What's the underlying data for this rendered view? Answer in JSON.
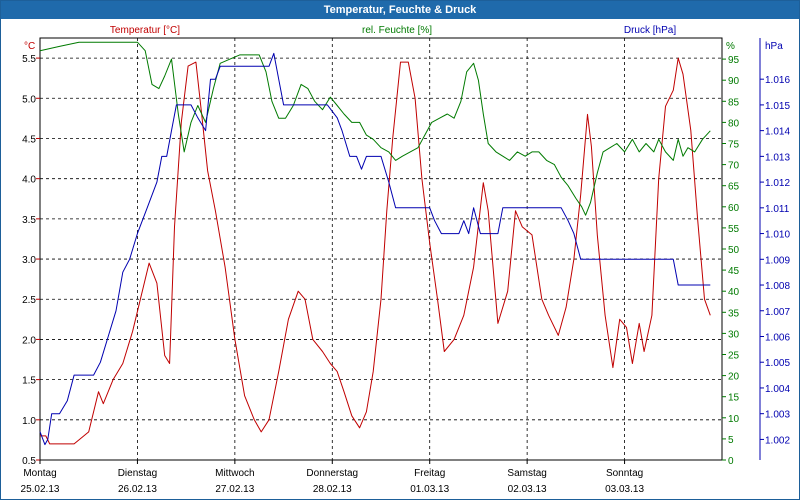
{
  "window": {
    "title": "Temperatur, Feuchte & Druck"
  },
  "colors": {
    "temperature": "#c00000",
    "humidity": "#007a00",
    "pressure": "#0000b0",
    "grid": "#000000",
    "titlebar": "#1f6aab"
  },
  "chart_data": {
    "type": "line",
    "title": "Temperatur, Feuchte & Druck",
    "x_axis": {
      "ticks": [
        {
          "day": "Montag",
          "date": "25.02.13"
        },
        {
          "day": "Dienstag",
          "date": "26.02.13"
        },
        {
          "day": "Mittwoch",
          "date": "27.02.13"
        },
        {
          "day": "Donnerstag",
          "date": "28.02.13"
        },
        {
          "day": "Freitag",
          "date": "01.03.13"
        },
        {
          "day": "Samstag",
          "date": "02.03.13"
        },
        {
          "day": "Sonntag",
          "date": "03.03.13"
        }
      ],
      "range_days": [
        0,
        7
      ]
    },
    "axes": {
      "temperature": {
        "unit_label": "°C",
        "legend": "Temperatur [°C]",
        "ylim": [
          0.5,
          5.75
        ],
        "ticks": [
          "0.5",
          "1.0",
          "1.5",
          "2.0",
          "2.5",
          "3.0",
          "3.5",
          "4.0",
          "4.5",
          "5.0",
          "5.5"
        ]
      },
      "humidity": {
        "unit_label": "%",
        "legend": "rel. Feuchte [%]",
        "ylim": [
          0,
          100
        ],
        "ticks": [
          "0",
          "5",
          "10",
          "15",
          "20",
          "25",
          "30",
          "35",
          "40",
          "45",
          "50",
          "55",
          "60",
          "65",
          "70",
          "75",
          "80",
          "85",
          "90",
          "95"
        ]
      },
      "pressure": {
        "unit_label": "hPa",
        "legend": "Druck [hPa]",
        "ylim": [
          1.0012,
          1.0176
        ],
        "ticks": [
          "1.002",
          "1.003",
          "1.004",
          "1.005",
          "1.006",
          "1.007",
          "1.008",
          "1.009",
          "1.010",
          "1.011",
          "1.012",
          "1.013",
          "1.014",
          "1.015",
          "1.016"
        ]
      }
    },
    "series": [
      {
        "name": "Temperatur [°C]",
        "axis": "temperature",
        "color": "#c00000",
        "points": [
          [
            0.0,
            0.8
          ],
          [
            0.06,
            0.8
          ],
          [
            0.1,
            0.7
          ],
          [
            0.2,
            0.7
          ],
          [
            0.35,
            0.7
          ],
          [
            0.5,
            0.85
          ],
          [
            0.6,
            1.35
          ],
          [
            0.65,
            1.2
          ],
          [
            0.75,
            1.5
          ],
          [
            0.85,
            1.7
          ],
          [
            0.95,
            2.1
          ],
          [
            1.05,
            2.6
          ],
          [
            1.12,
            2.95
          ],
          [
            1.2,
            2.7
          ],
          [
            1.28,
            1.8
          ],
          [
            1.33,
            1.7
          ],
          [
            1.38,
            3.4
          ],
          [
            1.45,
            4.7
          ],
          [
            1.52,
            5.4
          ],
          [
            1.6,
            5.45
          ],
          [
            1.66,
            4.8
          ],
          [
            1.72,
            4.1
          ],
          [
            1.8,
            3.6
          ],
          [
            1.9,
            2.9
          ],
          [
            2.0,
            2.0
          ],
          [
            2.1,
            1.3
          ],
          [
            2.2,
            1.0
          ],
          [
            2.27,
            0.85
          ],
          [
            2.35,
            1.0
          ],
          [
            2.45,
            1.6
          ],
          [
            2.55,
            2.25
          ],
          [
            2.65,
            2.6
          ],
          [
            2.72,
            2.5
          ],
          [
            2.8,
            2.0
          ],
          [
            2.9,
            1.85
          ],
          [
            2.98,
            1.7
          ],
          [
            3.05,
            1.6
          ],
          [
            3.12,
            1.35
          ],
          [
            3.2,
            1.05
          ],
          [
            3.28,
            0.9
          ],
          [
            3.35,
            1.1
          ],
          [
            3.42,
            1.6
          ],
          [
            3.5,
            2.5
          ],
          [
            3.56,
            3.6
          ],
          [
            3.62,
            4.5
          ],
          [
            3.7,
            5.45
          ],
          [
            3.78,
            5.45
          ],
          [
            3.85,
            5.0
          ],
          [
            3.92,
            4.0
          ],
          [
            4.0,
            3.2
          ],
          [
            4.08,
            2.5
          ],
          [
            4.15,
            1.85
          ],
          [
            4.25,
            2.0
          ],
          [
            4.35,
            2.3
          ],
          [
            4.45,
            2.9
          ],
          [
            4.55,
            3.95
          ],
          [
            4.6,
            3.6
          ],
          [
            4.7,
            2.2
          ],
          [
            4.8,
            2.6
          ],
          [
            4.88,
            3.6
          ],
          [
            4.95,
            3.4
          ],
          [
            5.05,
            3.3
          ],
          [
            5.15,
            2.5
          ],
          [
            5.22,
            2.3
          ],
          [
            5.32,
            2.05
          ],
          [
            5.4,
            2.4
          ],
          [
            5.48,
            3.0
          ],
          [
            5.55,
            3.8
          ],
          [
            5.62,
            4.8
          ],
          [
            5.66,
            4.4
          ],
          [
            5.72,
            3.3
          ],
          [
            5.8,
            2.3
          ],
          [
            5.88,
            1.65
          ],
          [
            5.95,
            2.25
          ],
          [
            6.02,
            2.15
          ],
          [
            6.08,
            1.7
          ],
          [
            6.15,
            2.2
          ],
          [
            6.2,
            1.85
          ],
          [
            6.28,
            2.3
          ],
          [
            6.35,
            4.0
          ],
          [
            6.42,
            4.9
          ],
          [
            6.5,
            5.1
          ],
          [
            6.55,
            5.5
          ],
          [
            6.6,
            5.3
          ],
          [
            6.68,
            4.6
          ],
          [
            6.75,
            3.5
          ],
          [
            6.82,
            2.5
          ],
          [
            6.88,
            2.3
          ]
        ]
      },
      {
        "name": "rel. Feuchte [%]",
        "axis": "humidity",
        "color": "#007a00",
        "points": [
          [
            0.0,
            97
          ],
          [
            0.2,
            98
          ],
          [
            0.4,
            99
          ],
          [
            0.6,
            99
          ],
          [
            0.8,
            99
          ],
          [
            1.0,
            99
          ],
          [
            1.08,
            97
          ],
          [
            1.15,
            89
          ],
          [
            1.22,
            88
          ],
          [
            1.28,
            91
          ],
          [
            1.35,
            95
          ],
          [
            1.42,
            82
          ],
          [
            1.48,
            73
          ],
          [
            1.55,
            80
          ],
          [
            1.62,
            84
          ],
          [
            1.7,
            80
          ],
          [
            1.78,
            88
          ],
          [
            1.85,
            94
          ],
          [
            1.95,
            95
          ],
          [
            2.05,
            96
          ],
          [
            2.15,
            96
          ],
          [
            2.25,
            96
          ],
          [
            2.32,
            92
          ],
          [
            2.38,
            85
          ],
          [
            2.45,
            81
          ],
          [
            2.52,
            81
          ],
          [
            2.6,
            84
          ],
          [
            2.68,
            89
          ],
          [
            2.75,
            88
          ],
          [
            2.82,
            85
          ],
          [
            2.9,
            83
          ],
          [
            2.98,
            86
          ],
          [
            3.05,
            84
          ],
          [
            3.12,
            82
          ],
          [
            3.2,
            80
          ],
          [
            3.28,
            80
          ],
          [
            3.35,
            77
          ],
          [
            3.42,
            76
          ],
          [
            3.5,
            74
          ],
          [
            3.58,
            73
          ],
          [
            3.65,
            71
          ],
          [
            3.72,
            72
          ],
          [
            3.8,
            73
          ],
          [
            3.88,
            74
          ],
          [
            3.95,
            77
          ],
          [
            4.02,
            80
          ],
          [
            4.1,
            81
          ],
          [
            4.18,
            82
          ],
          [
            4.25,
            81
          ],
          [
            4.32,
            85
          ],
          [
            4.38,
            92
          ],
          [
            4.45,
            94
          ],
          [
            4.5,
            90
          ],
          [
            4.55,
            82
          ],
          [
            4.6,
            75
          ],
          [
            4.68,
            73
          ],
          [
            4.75,
            72
          ],
          [
            4.82,
            71
          ],
          [
            4.9,
            73
          ],
          [
            4.98,
            72
          ],
          [
            5.05,
            73
          ],
          [
            5.12,
            73
          ],
          [
            5.2,
            71
          ],
          [
            5.28,
            70
          ],
          [
            5.35,
            67
          ],
          [
            5.42,
            65
          ],
          [
            5.5,
            62
          ],
          [
            5.56,
            60
          ],
          [
            5.6,
            58
          ],
          [
            5.65,
            61
          ],
          [
            5.72,
            68
          ],
          [
            5.78,
            73
          ],
          [
            5.85,
            74
          ],
          [
            5.92,
            75
          ],
          [
            6.0,
            73
          ],
          [
            6.08,
            76
          ],
          [
            6.15,
            73
          ],
          [
            6.22,
            75
          ],
          [
            6.3,
            73
          ],
          [
            6.35,
            76
          ],
          [
            6.42,
            73
          ],
          [
            6.5,
            71
          ],
          [
            6.55,
            76
          ],
          [
            6.6,
            72
          ],
          [
            6.65,
            74
          ],
          [
            6.72,
            73
          ],
          [
            6.8,
            76
          ],
          [
            6.88,
            78
          ]
        ]
      },
      {
        "name": "Druck [hPa]",
        "axis": "pressure",
        "color": "#0000b0",
        "points": [
          [
            0.0,
            1.0023
          ],
          [
            0.05,
            1.0018
          ],
          [
            0.08,
            1.002
          ],
          [
            0.12,
            1.003
          ],
          [
            0.2,
            1.003
          ],
          [
            0.28,
            1.0035
          ],
          [
            0.35,
            1.0045
          ],
          [
            0.42,
            1.0045
          ],
          [
            0.55,
            1.0045
          ],
          [
            0.62,
            1.005
          ],
          [
            0.7,
            1.006
          ],
          [
            0.78,
            1.007
          ],
          [
            0.85,
            1.0085
          ],
          [
            0.92,
            1.009
          ],
          [
            1.0,
            1.01
          ],
          [
            1.1,
            1.011
          ],
          [
            1.2,
            1.012
          ],
          [
            1.25,
            1.013
          ],
          [
            1.3,
            1.013
          ],
          [
            1.35,
            1.014
          ],
          [
            1.4,
            1.015
          ],
          [
            1.55,
            1.015
          ],
          [
            1.62,
            1.0145
          ],
          [
            1.7,
            1.014
          ],
          [
            1.75,
            1.016
          ],
          [
            1.8,
            1.016
          ],
          [
            1.85,
            1.0165
          ],
          [
            2.2,
            1.0165
          ],
          [
            2.3,
            1.0165
          ],
          [
            2.35,
            1.0165
          ],
          [
            2.4,
            1.017
          ],
          [
            2.45,
            1.016
          ],
          [
            2.5,
            1.015
          ],
          [
            2.6,
            1.015
          ],
          [
            2.95,
            1.015
          ],
          [
            3.05,
            1.0145
          ],
          [
            3.1,
            1.014
          ],
          [
            3.18,
            1.013
          ],
          [
            3.25,
            1.013
          ],
          [
            3.3,
            1.0125
          ],
          [
            3.35,
            1.013
          ],
          [
            3.5,
            1.013
          ],
          [
            3.58,
            1.012
          ],
          [
            3.65,
            1.011
          ],
          [
            3.7,
            1.011
          ],
          [
            4.0,
            1.011
          ],
          [
            4.05,
            1.0105
          ],
          [
            4.12,
            1.01
          ],
          [
            4.3,
            1.01
          ],
          [
            4.35,
            1.0105
          ],
          [
            4.4,
            1.01
          ],
          [
            4.45,
            1.011
          ],
          [
            4.52,
            1.01
          ],
          [
            4.7,
            1.01
          ],
          [
            4.75,
            1.011
          ],
          [
            5.0,
            1.011
          ],
          [
            5.35,
            1.011
          ],
          [
            5.42,
            1.0105
          ],
          [
            5.48,
            1.01
          ],
          [
            5.55,
            1.009
          ],
          [
            5.7,
            1.009
          ],
          [
            6.2,
            1.009
          ],
          [
            6.5,
            1.009
          ],
          [
            6.55,
            1.008
          ],
          [
            6.7,
            1.008
          ],
          [
            6.88,
            1.008
          ]
        ]
      }
    ]
  }
}
